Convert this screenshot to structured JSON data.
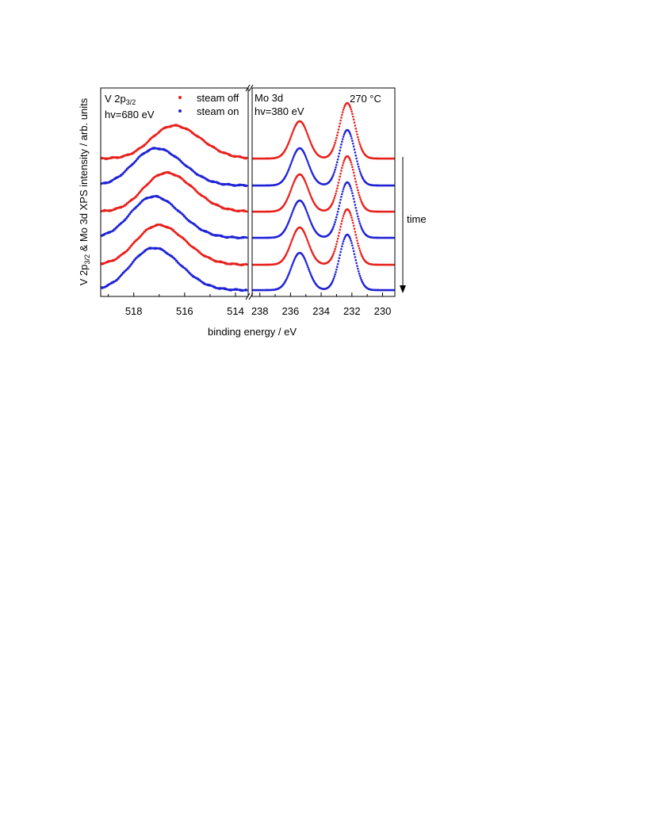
{
  "chart_data": {
    "type": "scatter",
    "title": "",
    "xlabel": "binding energy / eV",
    "ylabel": "V 2p3/2 & Mo 3d XPS intensity / arb. units",
    "ylabel_parts": {
      "pre": "V 2p",
      "sub1": "3/2",
      "mid": " & Mo 3d XPS intensity / arb. units"
    },
    "x_axis_reversed": true,
    "broken_axis": true,
    "grid": false,
    "legend": {
      "placement": "top-center",
      "entries": [
        {
          "label": "steam off",
          "color": "#e8211d"
        },
        {
          "label": "steam on",
          "color": "#1f23d6"
        }
      ]
    },
    "annotations": {
      "v_panel": {
        "line1_main": "V 2p",
        "line1_sub": "3/2",
        "line2": "hv=680 eV"
      },
      "mo_panel": {
        "line1": "Mo 3d",
        "line2": "hv=380 eV"
      },
      "temperature": "270 °C",
      "time": "time"
    },
    "panels": [
      {
        "name": "V 2p3/2",
        "xlim": [
          519.3,
          513.5
        ],
        "ticks": [
          518,
          516,
          514
        ],
        "tick_labels": [
          "518",
          "516",
          "514"
        ]
      },
      {
        "name": "Mo 3d",
        "xlim": [
          238.5,
          229.2
        ],
        "ticks": [
          238,
          236,
          234,
          232,
          230
        ],
        "tick_labels": [
          "238",
          "236",
          "234",
          "232",
          "230"
        ]
      }
    ],
    "series": [
      {
        "step": 1,
        "condition": "steam off",
        "v_peak_eV": 516.3
      },
      {
        "step": 2,
        "condition": "steam on",
        "v_peak_eV": 517.0
      },
      {
        "step": 3,
        "condition": "steam off",
        "v_peak_eV": 516.6
      },
      {
        "step": 4,
        "condition": "steam on",
        "v_peak_eV": 517.1
      },
      {
        "step": 5,
        "condition": "steam off",
        "v_peak_eV": 516.9
      },
      {
        "step": 6,
        "condition": "steam on",
        "v_peak_eV": 517.1
      }
    ],
    "mo_peaks_eV": [
      235.4,
      232.3
    ]
  }
}
